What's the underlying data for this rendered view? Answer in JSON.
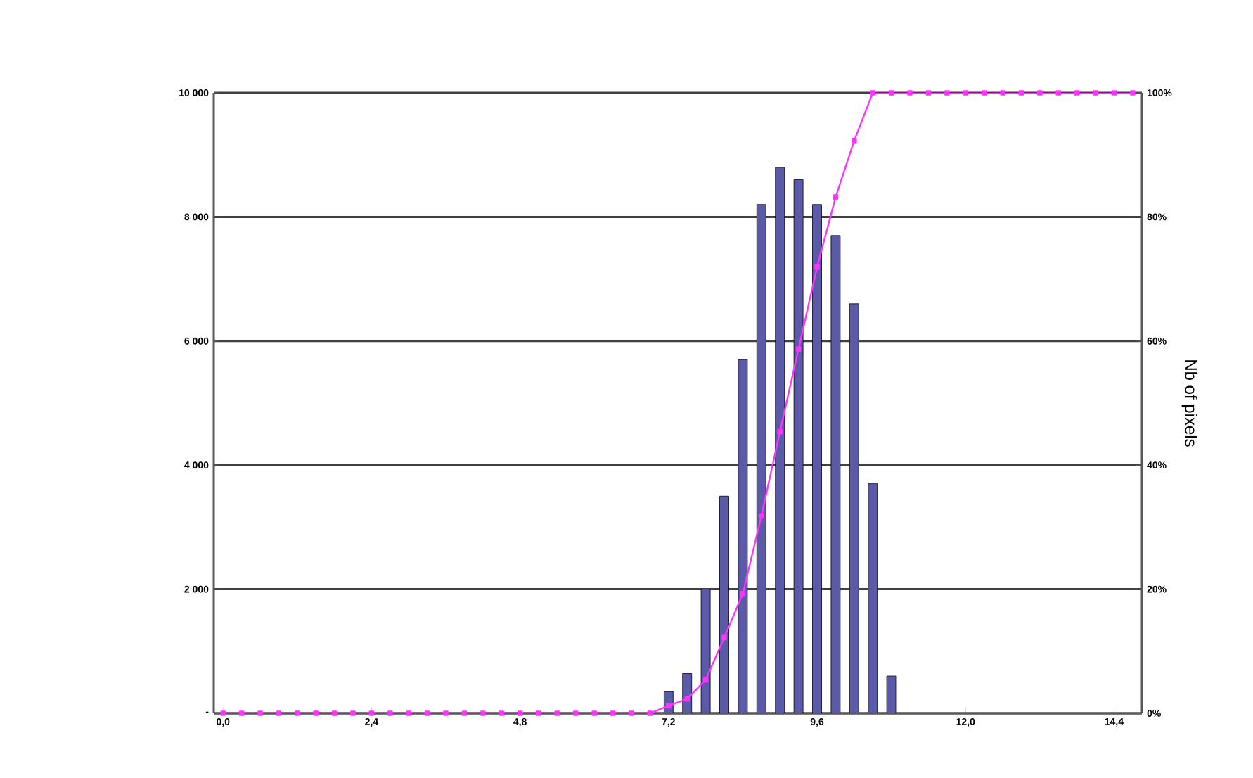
{
  "chart_data": {
    "type": "bar",
    "y2label": "Nb of pixels",
    "grid": "y",
    "marker": "square",
    "xlim": [
      -0.15,
      14.85
    ],
    "xticks": [
      {
        "value": 0,
        "label": "0,0"
      },
      {
        "value": 2.4,
        "label": "2,4"
      },
      {
        "value": 4.8,
        "label": "4,8"
      },
      {
        "value": 7.2,
        "label": "7,2"
      },
      {
        "value": 9.6,
        "label": "9,6"
      },
      {
        "value": 12,
        "label": "12,0"
      },
      {
        "value": 14.4,
        "label": "14,4"
      }
    ],
    "ylim": [
      0,
      10000
    ],
    "yticks": [
      {
        "value": 0,
        "label": "-"
      },
      {
        "value": 2000,
        "label": "2 000"
      },
      {
        "value": 4000,
        "label": "4 000"
      },
      {
        "value": 6000,
        "label": "6 000"
      },
      {
        "value": 8000,
        "label": "8 000"
      },
      {
        "value": 10000,
        "label": "10 000"
      }
    ],
    "y2lim": [
      0,
      100
    ],
    "y2ticks": [
      {
        "value": 0,
        "label": "0%"
      },
      {
        "value": 20,
        "label": "20%"
      },
      {
        "value": 40,
        "label": "40%"
      },
      {
        "value": 60,
        "label": "60%"
      },
      {
        "value": 80,
        "label": "80%"
      },
      {
        "value": 100,
        "label": "100%"
      }
    ],
    "series": [
      {
        "color": "#5a5aa8",
        "x": [
          7.2,
          7.5,
          7.8,
          8.1,
          8.4,
          8.7,
          9.0,
          9.3,
          9.6,
          9.9,
          10.2,
          10.5,
          10.8
        ],
        "values": [
          350,
          640,
          2000,
          3500,
          5700,
          8200,
          8800,
          8600,
          8200,
          7700,
          6600,
          3700,
          600
        ]
      },
      {
        "type": "line",
        "axis": "y2",
        "color": "#ff33ff",
        "x": [
          0,
          0.3,
          0.6,
          0.9,
          1.2,
          1.5,
          1.8,
          2.1,
          2.4,
          2.7,
          3.0,
          3.3,
          3.6,
          3.9,
          4.2,
          4.5,
          4.8,
          5.1,
          5.4,
          5.7,
          6.0,
          6.3,
          6.6,
          6.9,
          7.2,
          7.5,
          7.8,
          8.1,
          8.4,
          8.7,
          9.0,
          9.3,
          9.6,
          9.9,
          10.2,
          10.5,
          10.8,
          11.1,
          11.4,
          11.7,
          12.0,
          12.3,
          12.6,
          12.9,
          13.2,
          13.5,
          13.8,
          14.1,
          14.4,
          14.7
        ],
        "values": [
          0,
          0,
          0,
          0,
          0,
          0,
          0,
          0,
          0,
          0,
          0,
          0,
          0,
          0,
          0,
          0,
          0,
          0,
          0,
          0,
          0,
          0,
          0,
          0,
          1.2,
          2.3,
          5.4,
          12.2,
          19.3,
          31.8,
          45.4,
          58.7,
          71.9,
          83.2,
          92.3,
          100,
          100,
          100,
          100,
          100,
          100,
          100,
          100,
          100,
          100,
          100,
          100,
          100,
          100,
          100
        ]
      }
    ]
  }
}
